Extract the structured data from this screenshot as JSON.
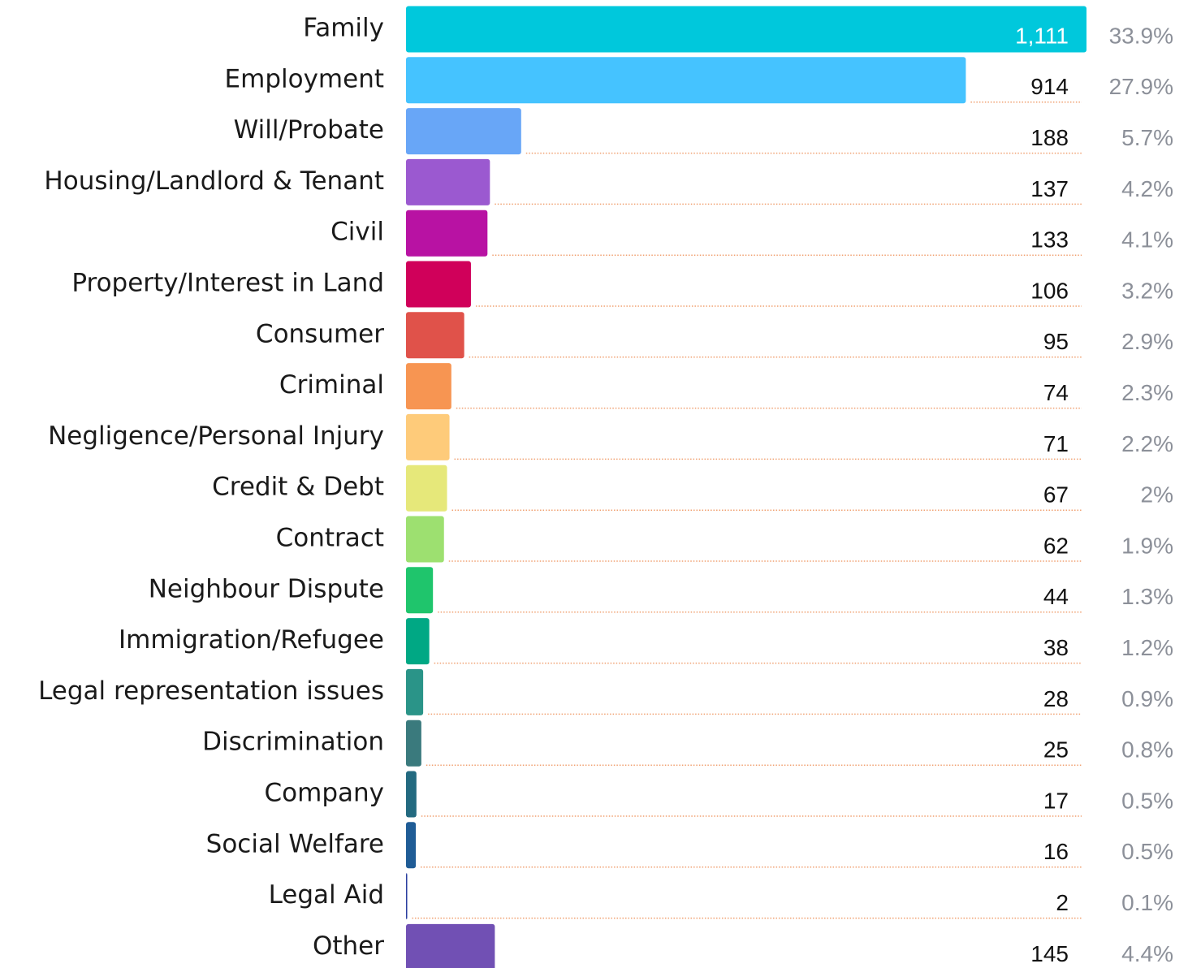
{
  "chart_data": {
    "type": "bar",
    "orientation": "horizontal",
    "categories": [
      "Family",
      "Employment",
      "Will/Probate",
      "Housing/Landlord & Tenant",
      "Civil",
      "Property/Interest in Land",
      "Consumer",
      "Criminal",
      "Negligence/Personal Injury",
      "Credit & Debt",
      "Contract",
      "Neighbour Dispute",
      "Immigration/Refugee",
      "Legal representation issues",
      "Discrimination",
      "Company",
      "Social Welfare",
      "Legal Aid",
      "Other"
    ],
    "values": [
      1111,
      914,
      188,
      137,
      133,
      106,
      95,
      74,
      71,
      67,
      62,
      44,
      38,
      28,
      25,
      17,
      16,
      2,
      145
    ],
    "value_labels": [
      "1,111",
      "914",
      "188",
      "137",
      "133",
      "106",
      "95",
      "74",
      "71",
      "67",
      "62",
      "44",
      "38",
      "28",
      "25",
      "17",
      "16",
      "2",
      "145"
    ],
    "share_labels": [
      "33.9%",
      "27.9%",
      "5.7%",
      "4.2%",
      "4.1%",
      "3.2%",
      "2.9%",
      "2.3%",
      "2.2%",
      "2%",
      "1.9%",
      "1.3%",
      "1.2%",
      "0.9%",
      "0.8%",
      "0.5%",
      "0.5%",
      "0.1%",
      "4.4%"
    ],
    "colors": [
      "#00c8dc",
      "#45c3ff",
      "#68a6f7",
      "#9b59d0",
      "#b812a3",
      "#d0005a",
      "#e0524a",
      "#f79552",
      "#fecb7a",
      "#e6e87a",
      "#9de070",
      "#1fc56c",
      "#00a884",
      "#2a9488",
      "#3a7a7d",
      "#236a80",
      "#1f5c96",
      "#2b3fa0",
      "#7150b4"
    ]
  }
}
